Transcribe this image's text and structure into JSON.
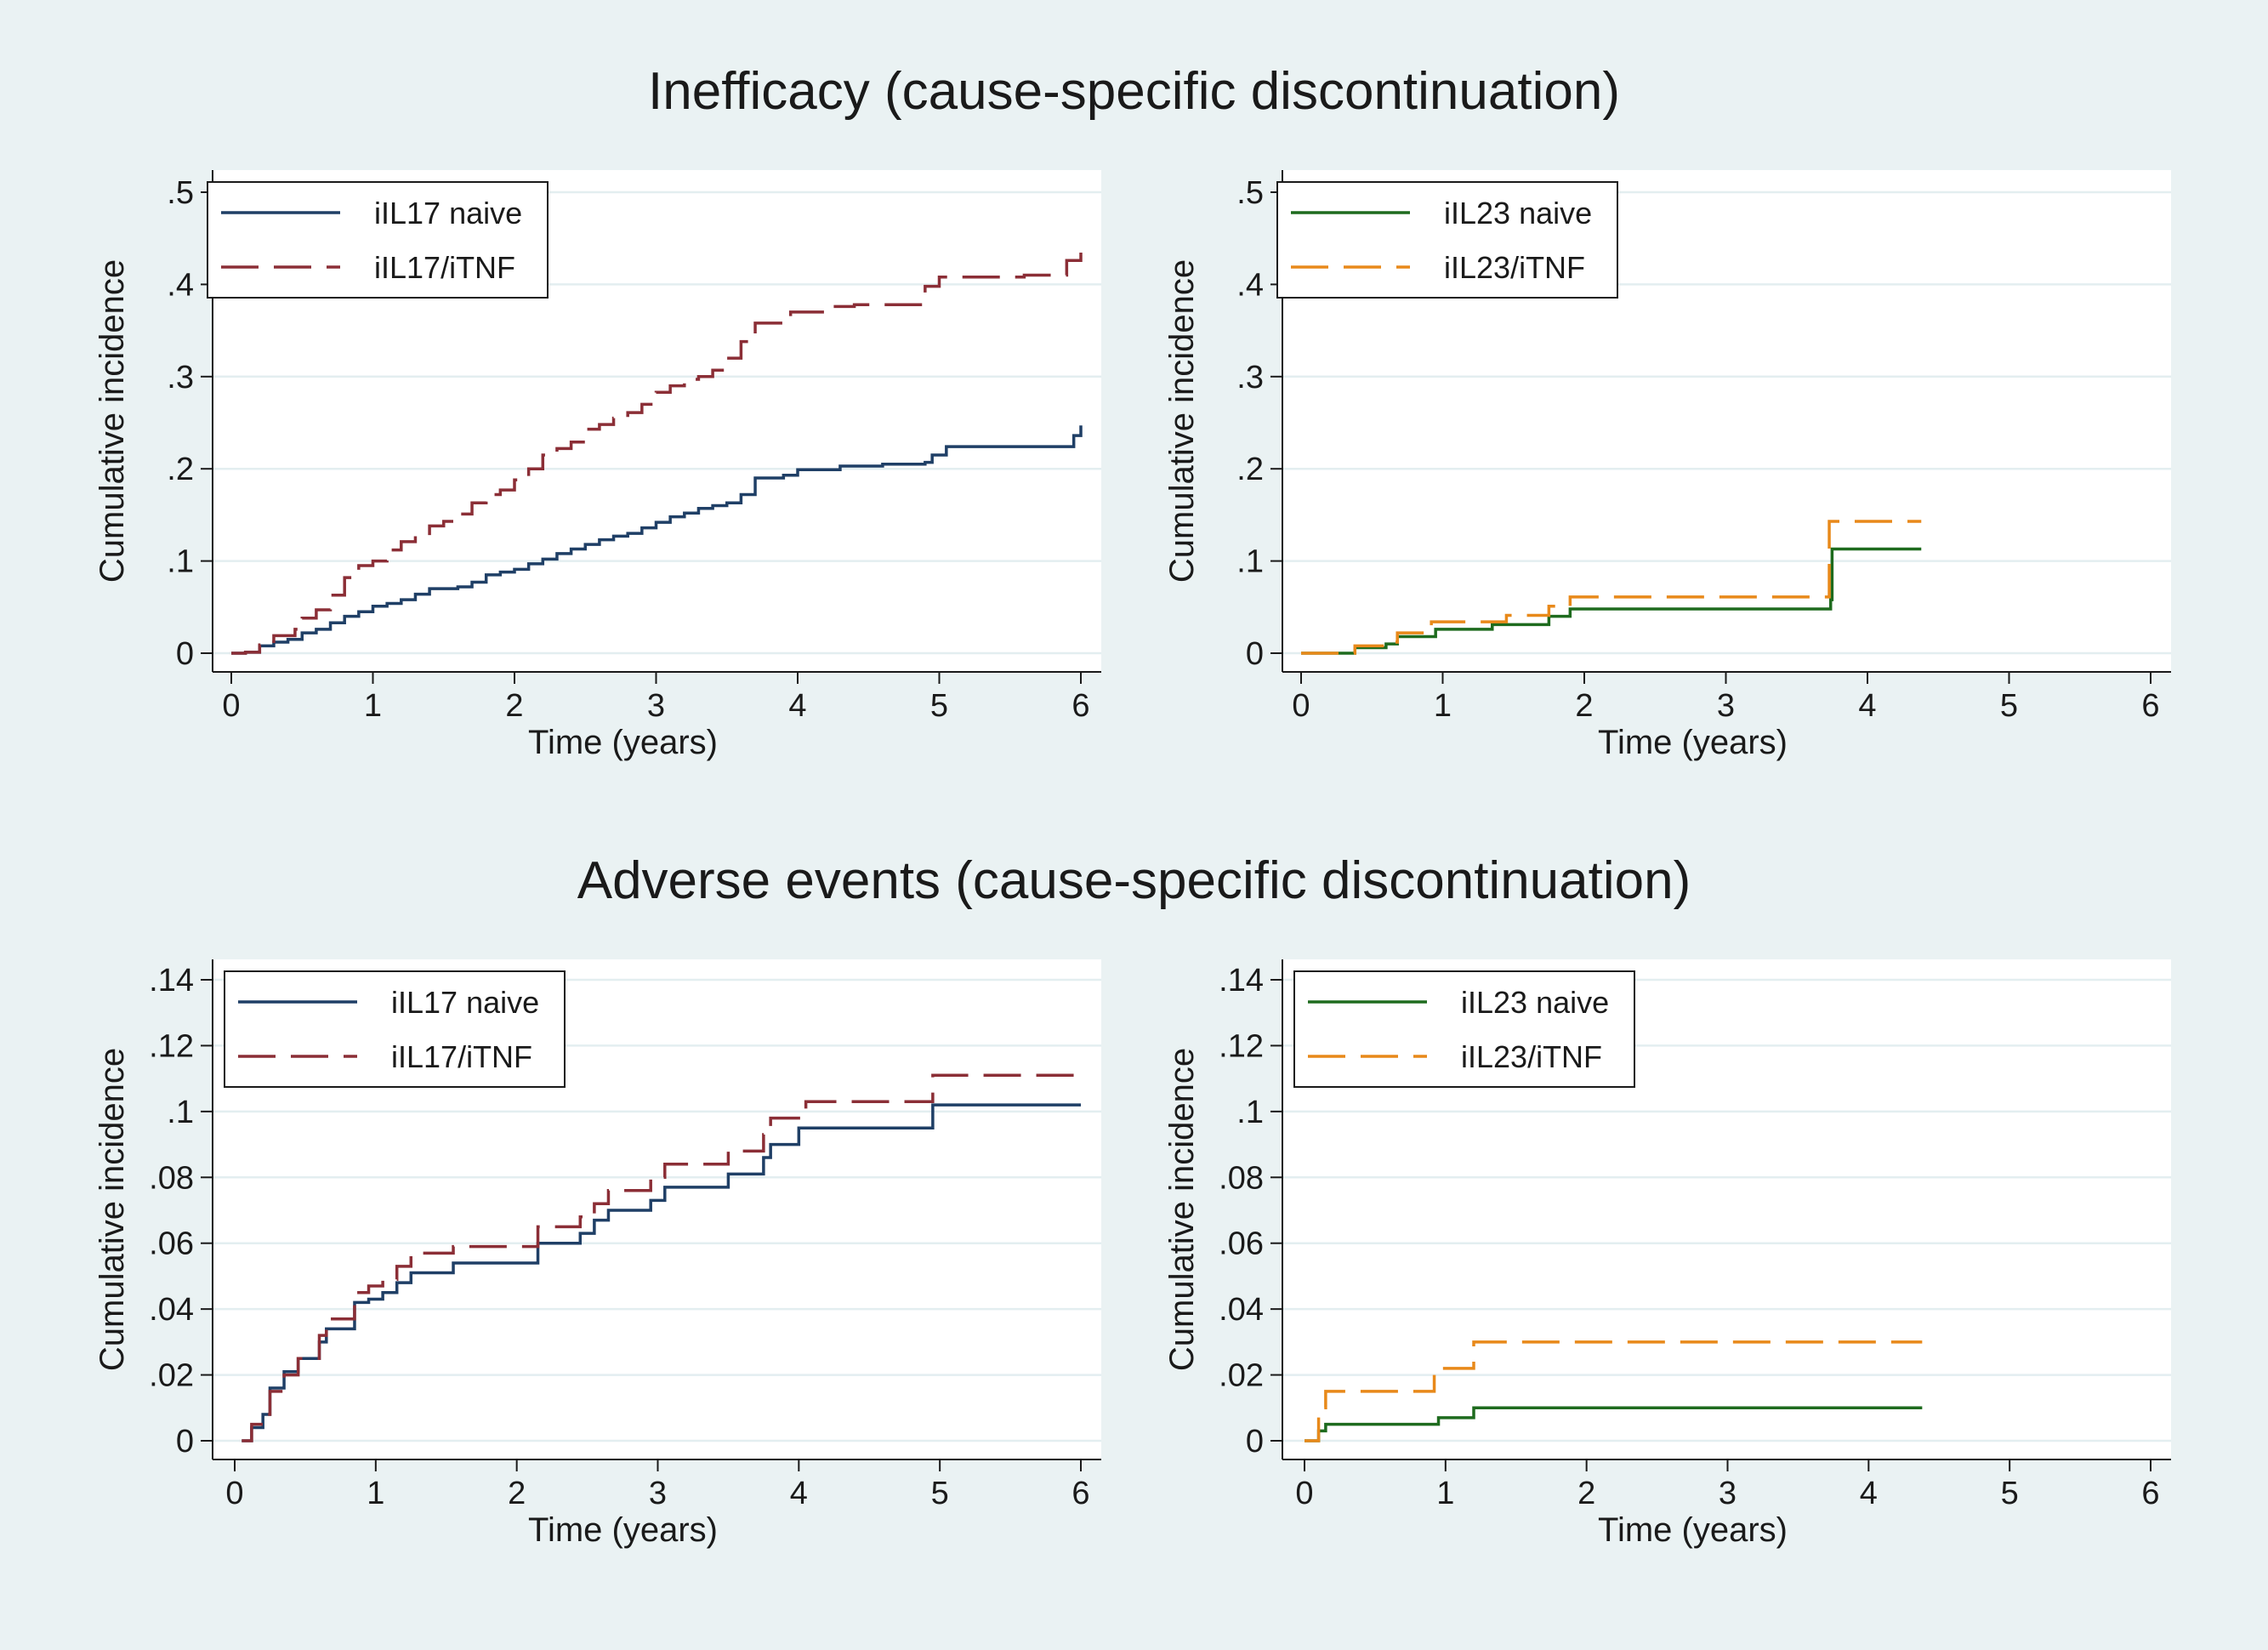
{
  "titles": {
    "top": "Inefficacy (cause-specific discontinuation)",
    "bottom": "Adverse events (cause-specific discontinuation)"
  },
  "chart_data": [
    {
      "type": "line",
      "step": true,
      "xlabel": "Time (years)",
      "ylabel": "Cumulative incidence",
      "xlim": [
        0,
        6
      ],
      "ylim": [
        0,
        0.5
      ],
      "xticks": [
        0,
        1,
        2,
        3,
        4,
        5,
        6
      ],
      "xtick_labels": [
        "0",
        "1",
        "2",
        "3",
        "4",
        "5",
        "6"
      ],
      "yticks": [
        0,
        0.1,
        0.2,
        0.3,
        0.4,
        0.5
      ],
      "ytick_labels": [
        "0",
        ".1",
        ".2",
        ".3",
        ".4",
        ".5"
      ],
      "grid": true,
      "legend_position": "top-left",
      "series": [
        {
          "name": "iIL17 naive",
          "color": "#1f3f66",
          "dashed": false,
          "points": [
            [
              0,
              0
            ],
            [
              0.1,
              0.001
            ],
            [
              0.2,
              0.008
            ],
            [
              0.3,
              0.012
            ],
            [
              0.4,
              0.015
            ],
            [
              0.5,
              0.022
            ],
            [
              0.6,
              0.026
            ],
            [
              0.7,
              0.033
            ],
            [
              0.8,
              0.04
            ],
            [
              0.9,
              0.045
            ],
            [
              1.0,
              0.051
            ],
            [
              1.1,
              0.054
            ],
            [
              1.2,
              0.058
            ],
            [
              1.3,
              0.064
            ],
            [
              1.4,
              0.07
            ],
            [
              1.6,
              0.072
            ],
            [
              1.7,
              0.077
            ],
            [
              1.8,
              0.085
            ],
            [
              1.9,
              0.088
            ],
            [
              2.0,
              0.091
            ],
            [
              2.1,
              0.097
            ],
            [
              2.2,
              0.102
            ],
            [
              2.3,
              0.108
            ],
            [
              2.4,
              0.113
            ],
            [
              2.5,
              0.118
            ],
            [
              2.6,
              0.123
            ],
            [
              2.7,
              0.127
            ],
            [
              2.8,
              0.13
            ],
            [
              2.9,
              0.136
            ],
            [
              3.0,
              0.142
            ],
            [
              3.1,
              0.148
            ],
            [
              3.2,
              0.152
            ],
            [
              3.3,
              0.157
            ],
            [
              3.4,
              0.16
            ],
            [
              3.5,
              0.163
            ],
            [
              3.6,
              0.172
            ],
            [
              3.7,
              0.19
            ],
            [
              3.9,
              0.193
            ],
            [
              4.0,
              0.199
            ],
            [
              4.3,
              0.203
            ],
            [
              4.6,
              0.205
            ],
            [
              4.9,
              0.207
            ],
            [
              4.95,
              0.215
            ],
            [
              5.05,
              0.224
            ],
            [
              5.9,
              0.224
            ],
            [
              5.95,
              0.236
            ],
            [
              6.0,
              0.247
            ]
          ]
        },
        {
          "name": "iIL17/iTNF",
          "color": "#8b2e36",
          "dashed": true,
          "points": [
            [
              0,
              0
            ],
            [
              0.1,
              0.001
            ],
            [
              0.2,
              0.009
            ],
            [
              0.3,
              0.019
            ],
            [
              0.45,
              0.026
            ],
            [
              0.5,
              0.038
            ],
            [
              0.6,
              0.047
            ],
            [
              0.7,
              0.063
            ],
            [
              0.8,
              0.082
            ],
            [
              0.9,
              0.095
            ],
            [
              1.0,
              0.1
            ],
            [
              1.1,
              0.112
            ],
            [
              1.2,
              0.121
            ],
            [
              1.3,
              0.128
            ],
            [
              1.4,
              0.138
            ],
            [
              1.5,
              0.143
            ],
            [
              1.6,
              0.151
            ],
            [
              1.7,
              0.163
            ],
            [
              1.8,
              0.172
            ],
            [
              1.9,
              0.177
            ],
            [
              2.0,
              0.188
            ],
            [
              2.1,
              0.2
            ],
            [
              2.2,
              0.215
            ],
            [
              2.3,
              0.222
            ],
            [
              2.4,
              0.229
            ],
            [
              2.5,
              0.243
            ],
            [
              2.6,
              0.248
            ],
            [
              2.7,
              0.255
            ],
            [
              2.8,
              0.261
            ],
            [
              2.9,
              0.27
            ],
            [
              3.0,
              0.283
            ],
            [
              3.1,
              0.29
            ],
            [
              3.2,
              0.297
            ],
            [
              3.3,
              0.3
            ],
            [
              3.4,
              0.307
            ],
            [
              3.5,
              0.32
            ],
            [
              3.6,
              0.338
            ],
            [
              3.7,
              0.358
            ],
            [
              3.95,
              0.37
            ],
            [
              4.2,
              0.376
            ],
            [
              4.4,
              0.378
            ],
            [
              4.9,
              0.398
            ],
            [
              5.0,
              0.408
            ],
            [
              5.6,
              0.41
            ],
            [
              5.9,
              0.426
            ],
            [
              6.0,
              0.445
            ]
          ]
        }
      ]
    },
    {
      "type": "line",
      "step": true,
      "xlabel": "Time (years)",
      "ylabel": "Cumulative incidence",
      "xlim": [
        0,
        6
      ],
      "ylim": [
        0,
        0.5
      ],
      "xticks": [
        0,
        1,
        2,
        3,
        4,
        5,
        6
      ],
      "xtick_labels": [
        "0",
        "1",
        "2",
        "3",
        "4",
        "5",
        "6"
      ],
      "yticks": [
        0,
        0.1,
        0.2,
        0.3,
        0.4,
        0.5
      ],
      "ytick_labels": [
        "0",
        ".1",
        ".2",
        ".3",
        ".4",
        ".5"
      ],
      "grid": true,
      "legend_position": "top-left",
      "series": [
        {
          "name": "iIL23 naive",
          "color": "#1e6b1e",
          "dashed": false,
          "points": [
            [
              0,
              0
            ],
            [
              0.35,
              0
            ],
            [
              0.38,
              0.006
            ],
            [
              0.6,
              0.01
            ],
            [
              0.68,
              0.018
            ],
            [
              0.95,
              0.026
            ],
            [
              1.35,
              0.031
            ],
            [
              1.75,
              0.04
            ],
            [
              1.9,
              0.048
            ],
            [
              3.72,
              0.048
            ],
            [
              3.74,
              0.058
            ],
            [
              3.75,
              0.113
            ],
            [
              4.38,
              0.113
            ]
          ]
        },
        {
          "name": "iIL23/iTNF",
          "color": "#e8891a",
          "dashed": true,
          "points": [
            [
              0,
              0
            ],
            [
              0.35,
              0
            ],
            [
              0.38,
              0.008
            ],
            [
              0.6,
              0.012
            ],
            [
              0.68,
              0.022
            ],
            [
              0.92,
              0.034
            ],
            [
              1.45,
              0.041
            ],
            [
              1.75,
              0.051
            ],
            [
              1.9,
              0.061
            ],
            [
              3.72,
              0.061
            ],
            [
              3.73,
              0.143
            ],
            [
              4.38,
              0.143
            ]
          ]
        }
      ]
    },
    {
      "type": "line",
      "step": true,
      "xlabel": "Time (years)",
      "ylabel": "Cumulative incidence",
      "xlim": [
        0,
        6
      ],
      "ylim": [
        0,
        0.14
      ],
      "xticks": [
        0,
        1,
        2,
        3,
        4,
        5,
        6
      ],
      "xtick_labels": [
        "0",
        "1",
        "2",
        "3",
        "4",
        "5",
        "6"
      ],
      "yticks": [
        0,
        0.02,
        0.04,
        0.06,
        0.08,
        0.1,
        0.12,
        0.14
      ],
      "ytick_labels": [
        "0",
        ".02",
        ".04",
        ".06",
        ".08",
        ".1",
        ".12",
        ".14"
      ],
      "grid": true,
      "legend_position": "top-left",
      "series": [
        {
          "name": "iIL17 naive",
          "color": "#1f3f66",
          "dashed": false,
          "points": [
            [
              0.05,
              0
            ],
            [
              0.12,
              0.004
            ],
            [
              0.2,
              0.008
            ],
            [
              0.25,
              0.016
            ],
            [
              0.35,
              0.021
            ],
            [
              0.45,
              0.025
            ],
            [
              0.6,
              0.03
            ],
            [
              0.65,
              0.034
            ],
            [
              0.85,
              0.042
            ],
            [
              0.95,
              0.043
            ],
            [
              1.05,
              0.045
            ],
            [
              1.15,
              0.048
            ],
            [
              1.25,
              0.051
            ],
            [
              1.55,
              0.054
            ],
            [
              2.15,
              0.055
            ],
            [
              2.15,
              0.06
            ],
            [
              2.45,
              0.063
            ],
            [
              2.55,
              0.067
            ],
            [
              2.65,
              0.07
            ],
            [
              2.95,
              0.073
            ],
            [
              3.05,
              0.077
            ],
            [
              3.5,
              0.081
            ],
            [
              3.75,
              0.086
            ],
            [
              3.8,
              0.09
            ],
            [
              4.0,
              0.095
            ],
            [
              4.95,
              0.095
            ],
            [
              4.95,
              0.102
            ],
            [
              6.0,
              0.102
            ]
          ]
        },
        {
          "name": "iIL17/iTNF",
          "color": "#8b2e36",
          "dashed": true,
          "points": [
            [
              0.05,
              0
            ],
            [
              0.12,
              0.005
            ],
            [
              0.2,
              0.008
            ],
            [
              0.25,
              0.015
            ],
            [
              0.35,
              0.02
            ],
            [
              0.45,
              0.025
            ],
            [
              0.6,
              0.032
            ],
            [
              0.65,
              0.037
            ],
            [
              0.85,
              0.045
            ],
            [
              0.95,
              0.047
            ],
            [
              1.05,
              0.049
            ],
            [
              1.15,
              0.053
            ],
            [
              1.25,
              0.057
            ],
            [
              1.55,
              0.059
            ],
            [
              2.15,
              0.062
            ],
            [
              2.15,
              0.065
            ],
            [
              2.45,
              0.068
            ],
            [
              2.55,
              0.072
            ],
            [
              2.65,
              0.076
            ],
            [
              2.95,
              0.08
            ],
            [
              3.05,
              0.084
            ],
            [
              3.5,
              0.088
            ],
            [
              3.75,
              0.093
            ],
            [
              3.8,
              0.098
            ],
            [
              4.05,
              0.103
            ],
            [
              4.9,
              0.103
            ],
            [
              4.95,
              0.111
            ],
            [
              6.0,
              0.111
            ]
          ]
        }
      ]
    },
    {
      "type": "line",
      "step": true,
      "xlabel": "Time (years)",
      "ylabel": "Cumulative incidence",
      "xlim": [
        0,
        6
      ],
      "ylim": [
        0,
        0.14
      ],
      "xticks": [
        0,
        1,
        2,
        3,
        4,
        5,
        6
      ],
      "xtick_labels": [
        "0",
        "1",
        "2",
        "3",
        "4",
        "5",
        "6"
      ],
      "yticks": [
        0,
        0.02,
        0.04,
        0.06,
        0.08,
        0.1,
        0.12,
        0.14
      ],
      "ytick_labels": [
        "0",
        ".02",
        ".04",
        ".06",
        ".08",
        ".1",
        ".12",
        ".14"
      ],
      "grid": true,
      "legend_position": "top-left",
      "series": [
        {
          "name": "iIL23 naive",
          "color": "#1e6b1e",
          "dashed": false,
          "points": [
            [
              0,
              0
            ],
            [
              0.08,
              0
            ],
            [
              0.1,
              0.003
            ],
            [
              0.15,
              0.005
            ],
            [
              0.95,
              0.005
            ],
            [
              0.95,
              0.007
            ],
            [
              1.2,
              0.007
            ],
            [
              1.2,
              0.01
            ],
            [
              4.38,
              0.01
            ]
          ]
        },
        {
          "name": "iIL23/iTNF",
          "color": "#e8891a",
          "dashed": true,
          "points": [
            [
              0,
              0
            ],
            [
              0.08,
              0
            ],
            [
              0.1,
              0.01
            ],
            [
              0.15,
              0.015
            ],
            [
              0.92,
              0.015
            ],
            [
              0.92,
              0.022
            ],
            [
              1.2,
              0.022
            ],
            [
              1.2,
              0.03
            ],
            [
              4.38,
              0.03
            ]
          ]
        }
      ]
    }
  ]
}
